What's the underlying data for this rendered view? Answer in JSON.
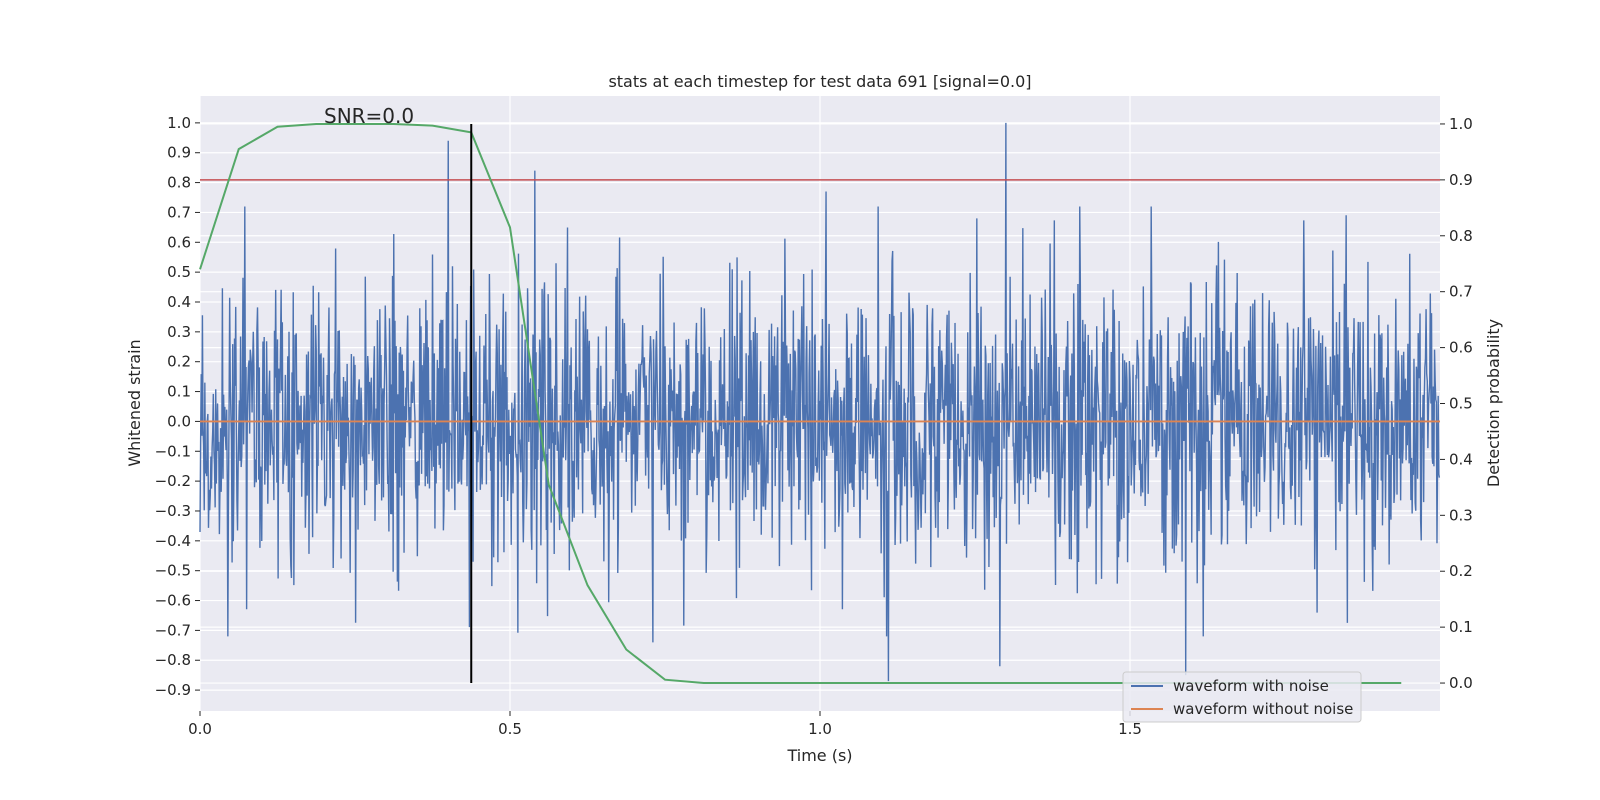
{
  "chart_data": {
    "type": "line",
    "title": "stats at each timestep for test data 691 [signal=0.0]",
    "xlabel": "Time (s)",
    "ylabel": "Whitened strain",
    "y2label": "Detection probability",
    "xlim": [
      0.0,
      2.0
    ],
    "ylim": [
      -0.97,
      1.09
    ],
    "y2lim": [
      -0.05,
      1.05
    ],
    "xticks": [
      0.0,
      0.5,
      1.0,
      1.5
    ],
    "xtick_labels": [
      "0.0",
      "0.5",
      "1.0",
      "1.5"
    ],
    "yticks": [
      1.0,
      0.9,
      0.8,
      0.7,
      0.6,
      0.5,
      0.4,
      0.3,
      0.2,
      0.1,
      0.0,
      -0.1,
      -0.2,
      -0.3,
      -0.4,
      -0.5,
      -0.6,
      -0.7,
      -0.8,
      -0.9
    ],
    "ytick_labels": [
      "1.0",
      "0.9",
      "0.8",
      "0.7",
      "0.6",
      "0.5",
      "0.4",
      "0.3",
      "0.2",
      "0.1",
      "0.0",
      "−0.1",
      "−0.2",
      "−0.3",
      "−0.4",
      "−0.5",
      "−0.6",
      "−0.7",
      "−0.8",
      "−0.9"
    ],
    "y2ticks": [
      1.0,
      0.9,
      0.8,
      0.7,
      0.6,
      0.5,
      0.4,
      0.3,
      0.2,
      0.1,
      0.0
    ],
    "y2tick_labels": [
      "1.0",
      "0.9",
      "0.8",
      "0.7",
      "0.6",
      "0.5",
      "0.4",
      "0.3",
      "0.2",
      "0.1",
      "0.0"
    ],
    "grid": true,
    "legend_position": "bottom-right",
    "series": [
      {
        "name": "waveform with noise",
        "axis": "left",
        "color": "#4c72b0",
        "sample_count": 2048,
        "sample_rate_hz": 1024,
        "typical_range": [
          -0.45,
          0.45
        ],
        "peaks": [
          {
            "x": 0.4,
            "y": 0.94
          },
          {
            "x": 0.54,
            "y": 0.84
          },
          {
            "x": 1.01,
            "y": 0.77
          },
          {
            "x": 1.3,
            "y": 1.0
          },
          {
            "x": 1.11,
            "y": -0.87
          },
          {
            "x": 1.29,
            "y": -0.82
          },
          {
            "x": 1.59,
            "y": -0.85
          },
          {
            "x": 0.73,
            "y": -0.74
          }
        ]
      },
      {
        "name": "waveform without noise",
        "axis": "left",
        "color": "#dd8452",
        "x": [
          0.0,
          2.0
        ],
        "values": [
          0.0,
          0.0
        ]
      },
      {
        "axis": "right",
        "color": "#55a868",
        "x": [
          0.0,
          0.0625,
          0.125,
          0.1875,
          0.25,
          0.3125,
          0.375,
          0.4375,
          0.5,
          0.5625,
          0.625,
          0.6875,
          0.75,
          0.8125,
          0.875,
          0.9375,
          1.0,
          1.0625,
          1.125,
          1.1875,
          1.25,
          1.3125,
          1.375,
          1.4375,
          1.5,
          1.5625,
          1.625,
          1.6875,
          1.75,
          1.8125,
          1.875,
          1.9375
        ],
        "values": [
          0.74,
          0.955,
          0.995,
          1.0,
          1.0,
          1.0,
          0.997,
          0.985,
          0.815,
          0.355,
          0.175,
          0.06,
          0.006,
          0.0,
          0.0,
          0.0,
          0.0,
          0.0,
          0.0,
          0.0,
          0.0,
          0.0,
          0.0,
          0.0,
          0.0,
          0.0,
          0.0,
          0.0,
          0.0,
          0.0,
          0.0,
          0.0
        ]
      }
    ],
    "threshold_line": {
      "axis": "right",
      "y": 0.9,
      "color": "#c44e52"
    },
    "marker_line": {
      "x": 0.4375,
      "y2_range": [
        0.0,
        1.0
      ],
      "color": "#000000"
    },
    "annotation": "SNR=0.0",
    "colors": {
      "background": "#eaeaf2",
      "grid": "#ffffff"
    }
  }
}
